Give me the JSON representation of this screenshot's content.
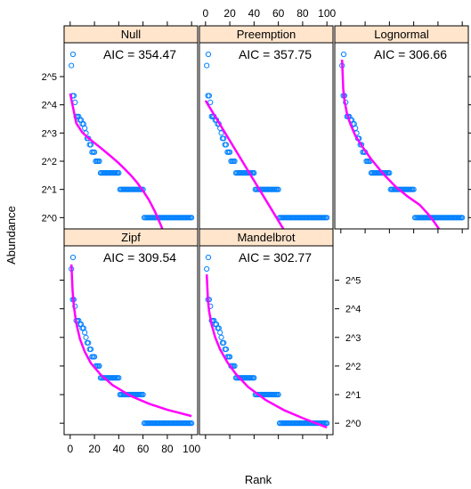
{
  "chart_data": {
    "type": "scatter",
    "xlabel": "Rank",
    "ylabel": "Abundance",
    "xlim": [
      -5,
      105
    ],
    "x_ticks": [
      0,
      20,
      40,
      60,
      80,
      100
    ],
    "y_scale": "log2",
    "y_tick_exponents": [
      0,
      1,
      2,
      3,
      4,
      5
    ],
    "y_tick_labels": [
      "2^0",
      "2^1",
      "2^2",
      "2^3",
      "2^4",
      "2^5"
    ],
    "ylim_log2": [
      -0.4,
      6.2
    ],
    "colors": {
      "strip": "#ffe5cc",
      "points": "#0080ff",
      "fit": "#ff00ff"
    },
    "points": {
      "rank": [
        1,
        2,
        3,
        4,
        5,
        6,
        7,
        8,
        9,
        10,
        11,
        12,
        13,
        14,
        15,
        16,
        17,
        18,
        19,
        20,
        21,
        22,
        23,
        24,
        25,
        26,
        27,
        28,
        29,
        30,
        31,
        32,
        33,
        34,
        35,
        36,
        37,
        38,
        39,
        40,
        41,
        42,
        43,
        44,
        45,
        46,
        47,
        48,
        49,
        50,
        51,
        52,
        53,
        54,
        55,
        56,
        57,
        58,
        59,
        60,
        61,
        62,
        63,
        64,
        65,
        66,
        67,
        68,
        69,
        70,
        71,
        72,
        73,
        74,
        75,
        76,
        77,
        78,
        79,
        80,
        81,
        82,
        83,
        84,
        85,
        86,
        87,
        88,
        89,
        90,
        91,
        92,
        93,
        94,
        95,
        96,
        97,
        98,
        99,
        100
      ],
      "abundance": [
        42,
        20,
        20,
        17,
        12,
        12,
        12,
        11,
        11,
        10,
        10,
        9,
        8,
        7,
        7,
        6,
        6,
        5,
        5,
        5,
        4,
        4,
        4,
        4,
        3,
        3,
        3,
        3,
        3,
        3,
        3,
        3,
        3,
        3,
        3,
        3,
        3,
        3,
        3,
        3,
        2,
        2,
        2,
        2,
        2,
        2,
        2,
        2,
        2,
        2,
        2,
        2,
        2,
        2,
        2,
        2,
        2,
        2,
        2,
        2,
        1,
        1,
        1,
        1,
        1,
        1,
        1,
        1,
        1,
        1,
        1,
        1,
        1,
        1,
        1,
        1,
        1,
        1,
        1,
        1,
        1,
        1,
        1,
        1,
        1,
        1,
        1,
        1,
        1,
        1,
        1,
        1,
        1,
        1,
        1,
        1,
        1,
        1,
        1,
        1
      ]
    },
    "panels": [
      {
        "name": "Null",
        "aic": "AIC = 354.47",
        "fit_x": [
          0,
          5,
          10,
          15,
          20,
          25,
          30,
          35,
          40,
          45,
          50,
          55,
          60,
          65,
          70,
          75,
          80,
          85
        ],
        "fit_log2": [
          4.4,
          3.35,
          3.02,
          2.82,
          2.65,
          2.48,
          2.3,
          2.12,
          1.93,
          1.72,
          1.5,
          1.25,
          0.95,
          0.62,
          0.2,
          -0.3,
          -0.9,
          -1.6
        ]
      },
      {
        "name": "Preemption",
        "aic": "AIC = 357.75",
        "fit_x": [
          0,
          10,
          20,
          30,
          40,
          50,
          60,
          70,
          75
        ],
        "fit_log2": [
          4.15,
          3.44,
          2.73,
          2.02,
          1.31,
          0.6,
          -0.11,
          -0.82,
          -1.18
        ]
      },
      {
        "name": "Lognormal",
        "aic": "AIC = 306.66",
        "fit_x": [
          1,
          2,
          3,
          5,
          8,
          12,
          18,
          25,
          35,
          45,
          55,
          65,
          72,
          76,
          80,
          84
        ],
        "fit_log2": [
          5.6,
          4.55,
          4.15,
          3.7,
          3.3,
          2.9,
          2.5,
          2.07,
          1.55,
          1.1,
          0.75,
          0.45,
          0.12,
          -0.1,
          -0.35,
          -0.6
        ]
      },
      {
        "name": "Zipf",
        "aic": "AIC = 309.54",
        "fit_x": [
          1,
          2,
          3,
          5,
          8,
          12,
          17,
          25,
          35,
          50,
          65,
          80,
          100
        ],
        "fit_log2": [
          5.55,
          4.62,
          4.1,
          3.5,
          2.95,
          2.5,
          2.1,
          1.7,
          1.33,
          0.95,
          0.68,
          0.47,
          0.25
        ]
      },
      {
        "name": "Mandelbrot",
        "aic": "AIC = 302.77",
        "fit_x": [
          1,
          2,
          3,
          5,
          8,
          12,
          18,
          25,
          35,
          50,
          65,
          80,
          100
        ],
        "fit_log2": [
          5.2,
          4.3,
          3.9,
          3.45,
          3.0,
          2.58,
          2.13,
          1.72,
          1.27,
          0.8,
          0.45,
          0.18,
          -0.15
        ]
      }
    ]
  }
}
